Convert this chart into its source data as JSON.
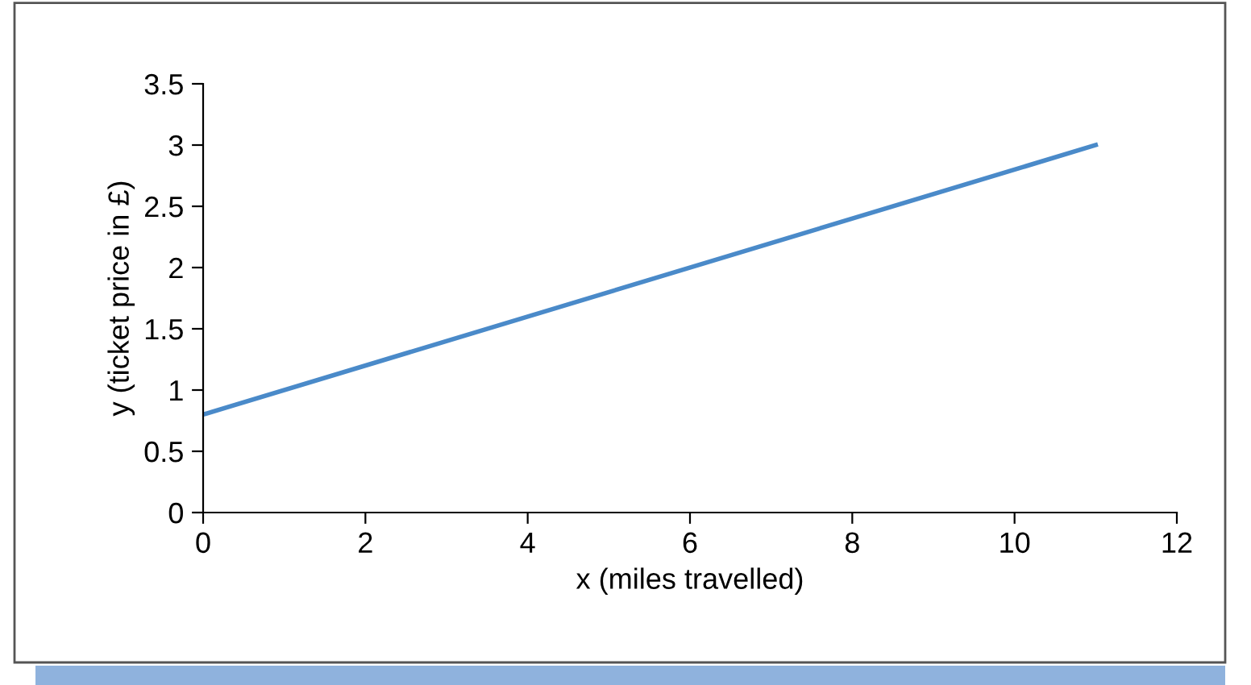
{
  "chart_data": {
    "type": "line",
    "xlabel": "x (miles travelled)",
    "ylabel": "y (ticket price in £)",
    "x": [
      0,
      11
    ],
    "series": [
      {
        "color": "#4a8ac9",
        "values": [
          0.8,
          3.0
        ]
      }
    ],
    "xlim": [
      0,
      12
    ],
    "xticks": [
      0,
      2,
      4,
      6,
      8,
      10,
      12
    ],
    "ylim": [
      0,
      3.5
    ],
    "yticks": [
      0,
      0.5,
      1,
      1.5,
      2,
      2.5,
      3,
      3.5
    ]
  }
}
